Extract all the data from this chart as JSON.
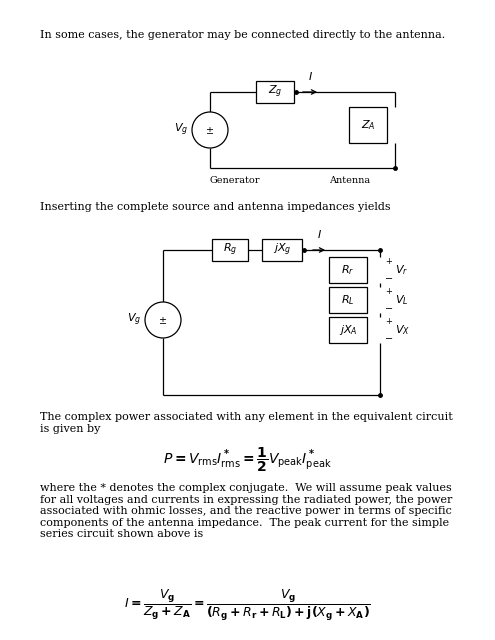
{
  "text1": "In some cases, the generator may be connected directly to the antenna.",
  "text2": "Inserting the complete source and antenna impedances yields",
  "text3": "The complex power associated with any element in the equivalent circuit\nis given by",
  "text4": "where the * denotes the complex conjugate.  We will assume peak values\nfor all voltages and currents in expressing the radiated power, the power\nassociated with ohmic losses, and the reactive power in terms of specific\ncomponents of the antenna impedance.  The peak current for the simple\nseries circuit shown above is",
  "bg_color": "#ffffff",
  "text_color": "#000000",
  "font_size_body": 8.0
}
